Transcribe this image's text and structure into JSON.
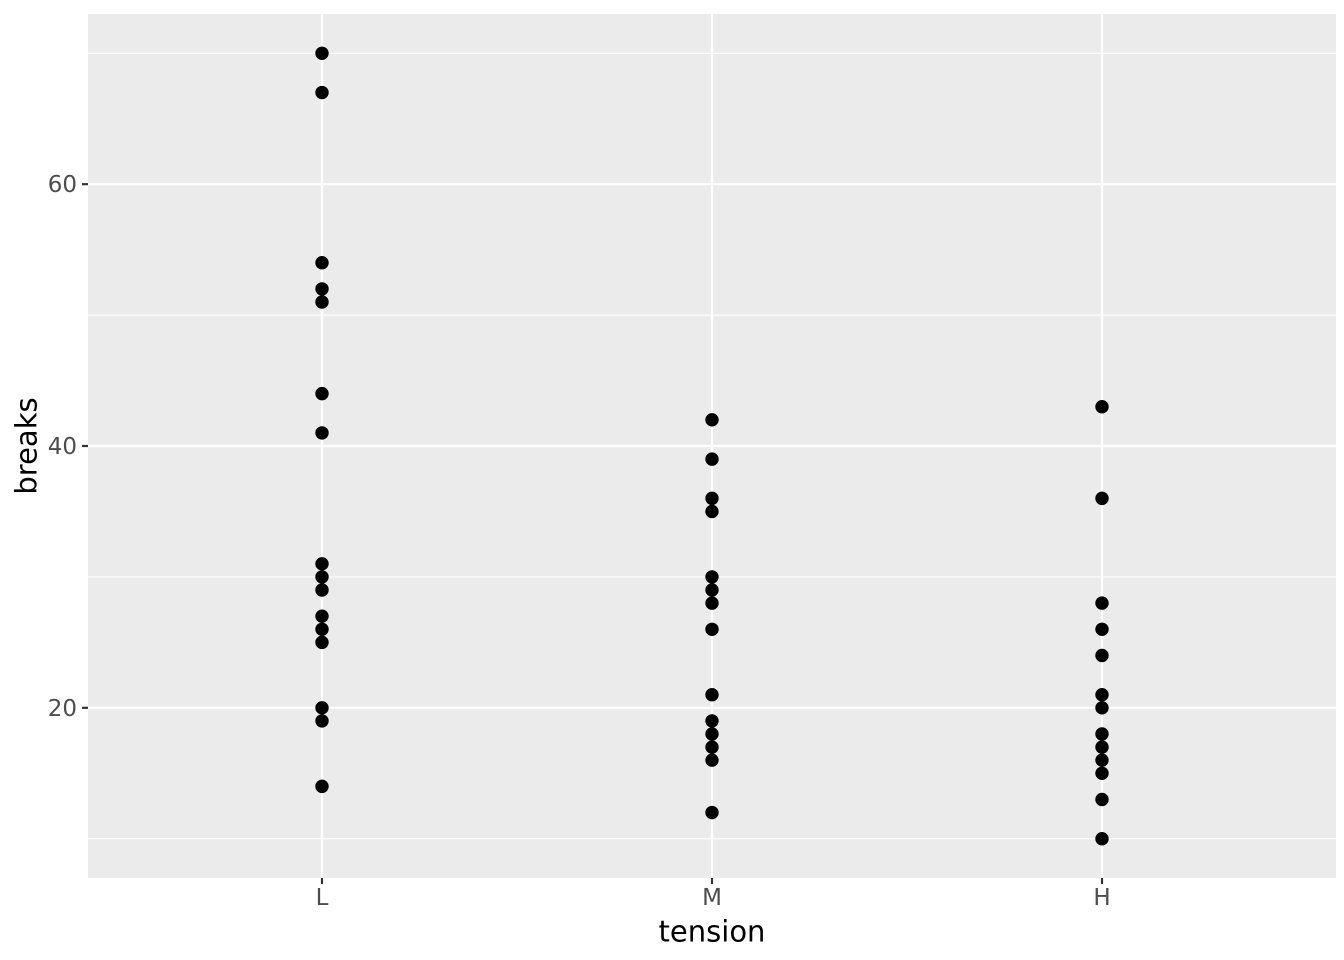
{
  "chart_data": {
    "type": "scatter",
    "variant": "strip-plot",
    "title": "",
    "xlabel": "tension",
    "ylabel": "breaks",
    "categories": [
      "L",
      "M",
      "H"
    ],
    "series": [
      {
        "category": "L",
        "values": [
          70,
          67,
          54,
          52,
          51,
          44,
          41,
          31,
          30,
          29,
          27,
          26,
          25,
          20,
          19,
          14
        ]
      },
      {
        "category": "M",
        "values": [
          42,
          39,
          36,
          35,
          30,
          29,
          28,
          26,
          21,
          19,
          18,
          17,
          16,
          12
        ]
      },
      {
        "category": "H",
        "values": [
          43,
          36,
          28,
          26,
          24,
          21,
          20,
          18,
          17,
          16,
          15,
          13,
          10
        ]
      }
    ],
    "ylim": [
      7,
      73
    ],
    "y_major_ticks": [
      20,
      40,
      60
    ],
    "y_minor_gridlines": [
      10,
      30,
      50,
      70
    ],
    "grid": "major-and-minor-horizontal, major-vertical-at-categories",
    "legend": "none",
    "style": {
      "panel_bg": "#EBEBEB",
      "grid_color": "#FFFFFF",
      "point_color": "#000000",
      "tick_color": "#333333",
      "tick_label_color": "#4D4D4D",
      "axis_title_color": "#000000",
      "background": "#FFFFFF"
    }
  }
}
